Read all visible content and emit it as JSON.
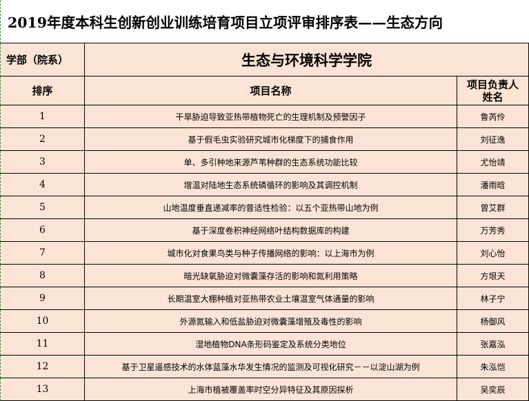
{
  "header": {
    "title": "2019年度本科生创新创业训练培育项目立项评审排序表——生态方向"
  },
  "department": {
    "label": "学部（院系）",
    "value": "生态与环境科学学院"
  },
  "table": {
    "columns": [
      "排序",
      "项目名称",
      "项目负责人姓名"
    ],
    "rows": [
      [
        "1",
        "干旱胁迫导致亚热带植物死亡的生理机制及预警因子",
        "鲁芮伶"
      ],
      [
        "2",
        "基于假毛虫实验研究城市化梯度下的捕食作用",
        "刘征逸"
      ],
      [
        "3",
        "单、多引种地来源芦苇种群的生态系统功能比较",
        "尤怡靖"
      ],
      [
        "4",
        "增温对陆地生态系统磷循环的影响及其调控机制",
        "潘雨晗"
      ],
      [
        "5",
        "山地温度垂直递减率的普适性检验：以五个亚热带山地为例",
        "曾艾群"
      ],
      [
        "6",
        "基于深度卷积神经网络叶结构数据库的构建",
        "万芳秀"
      ],
      [
        "7",
        "城市化对食果鸟类与种子传播网络的影响：以上海市为例",
        "刘心怡"
      ],
      [
        "8",
        "暗光缺氧胁迫对微囊藻存活的影响和氮利用策略",
        "方垠天"
      ],
      [
        "9",
        "长期温室大棚种植对亚热带农业土壤温室气体通量的影响",
        "林子宁"
      ],
      [
        "10",
        "外源氮输入和低盐胁迫对微囊藻增殖及毒性的影响",
        "杨御风"
      ],
      [
        "11",
        "湿地植物DNA条形码鉴定及系统分类地位",
        "张嘉泓"
      ],
      [
        "12",
        "基于卫星遥感技术的水体蓝藻水华发生情况的监测及可视化研究－－以淀山湖为例",
        "朱泓恺"
      ],
      [
        "13",
        "上海市植被覆盖率时空分异特征及其原因探析",
        "吴奕辰"
      ]
    ]
  }
}
